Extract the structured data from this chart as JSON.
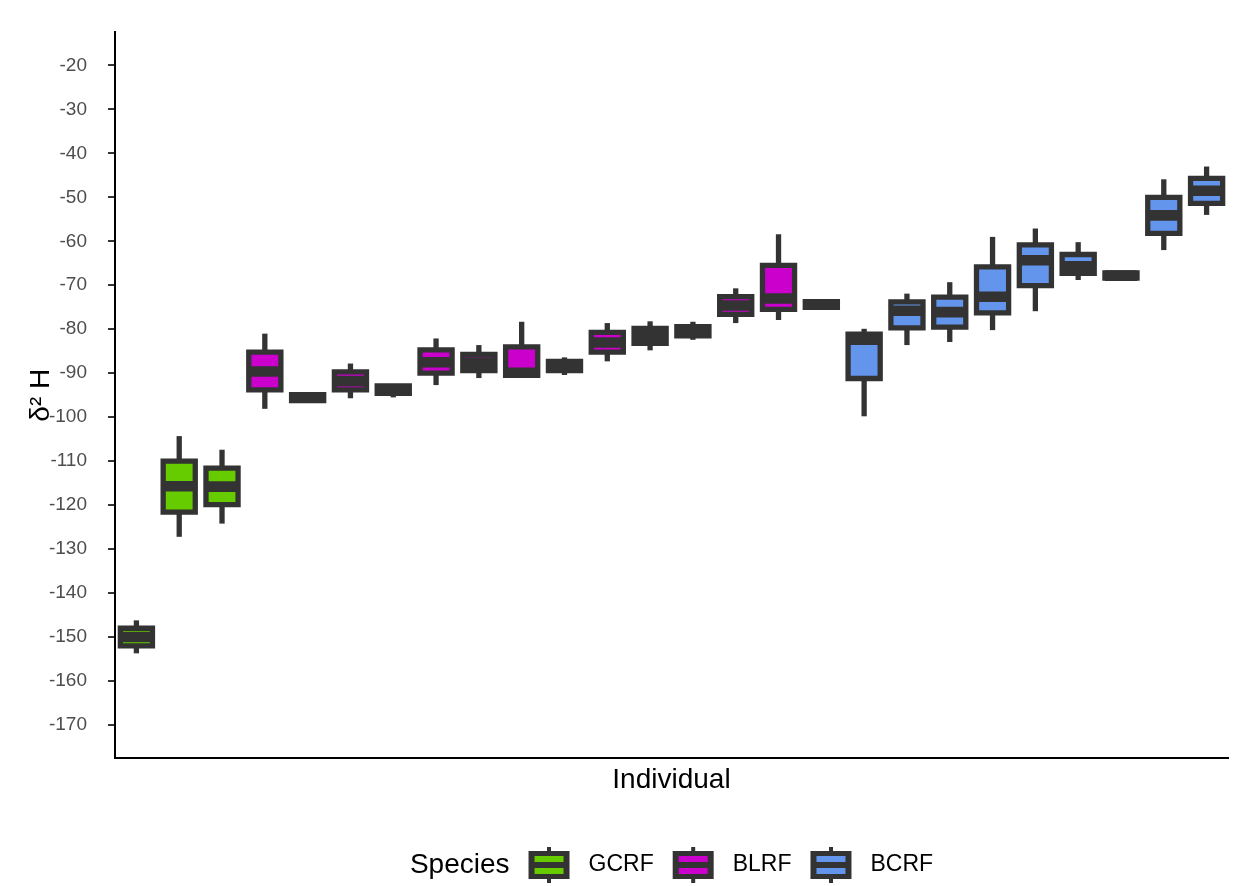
{
  "chart_data": {
    "type": "box",
    "xlabel": "Individual",
    "ylabel": "δ² H",
    "legend_title": "Species",
    "legend": "bottom",
    "tick_labels": "y",
    "categories": [
      null,
      null,
      null,
      null,
      null,
      null,
      null,
      null,
      null,
      null,
      null,
      null,
      null,
      null,
      null,
      null,
      null,
      null,
      null,
      null,
      null,
      null,
      null,
      null,
      null,
      null
    ],
    "ylim": [
      -177.5,
      -12.5
    ],
    "yticks": [
      -170,
      -160,
      -150,
      -140,
      -130,
      -120,
      -110,
      -100,
      -90,
      -80,
      -70,
      -60,
      -50,
      -40,
      -30,
      -20
    ],
    "series": [
      {
        "name": "GCRF",
        "color": "#66cc00",
        "boxes": [
          {
            "low": -153.7,
            "q1": -152.0,
            "median": -150.0,
            "q3": -148.0,
            "high": -146.2
          },
          {
            "low": -127.2,
            "q1": -121.6,
            "median": -115.7,
            "q3": -110.0,
            "high": -104.3
          },
          {
            "low": -124.2,
            "q1": -119.9,
            "median": -115.8,
            "q3": -111.6,
            "high": -107.4
          },
          null,
          null,
          null,
          null,
          null,
          null,
          null,
          null,
          null,
          null,
          null,
          null,
          null,
          null,
          null,
          null,
          null,
          null,
          null,
          null,
          null,
          null,
          null
        ]
      },
      {
        "name": "BLRF",
        "color": "#cc00cc",
        "boxes": [
          null,
          null,
          null,
          {
            "low": -98.1,
            "q1": -93.8,
            "median": -89.6,
            "q3": -85.2,
            "high": -81.0
          },
          {
            "low": -96.4,
            "q1": -96.2,
            "median": -95.5,
            "q3": -94.9,
            "high": -94.7
          },
          {
            "low": -95.7,
            "q1": -93.8,
            "median": -91.8,
            "q3": -89.7,
            "high": -87.8
          },
          {
            "low": -95.5,
            "q1": -94.6,
            "median": -93.8,
            "q3": -92.9,
            "high": -92.6
          },
          {
            "low": -92.7,
            "q1": -90.0,
            "median": -87.5,
            "q3": -84.7,
            "high": -82.1
          },
          {
            "low": -91.1,
            "q1": -89.4,
            "median": -87.6,
            "q3": -85.7,
            "high": -83.6
          },
          {
            "low": -90.7,
            "q1": -90.5,
            "median": -89.9,
            "q3": -84.0,
            "high": -78.3
          },
          {
            "low": -90.4,
            "q1": -89.4,
            "median": -88.3,
            "q3": -87.3,
            "high": -86.4
          },
          {
            "low": -87.3,
            "q1": -85.2,
            "median": -83.0,
            "q3": -80.7,
            "high": -78.6
          },
          {
            "low": -84.8,
            "q1": -83.2,
            "median": -81.5,
            "q3": -79.8,
            "high": -78.2
          },
          {
            "low": -82.4,
            "q1": -81.5,
            "median": -80.5,
            "q3": -79.4,
            "high": -78.3
          },
          {
            "low": -78.6,
            "q1": -76.6,
            "median": -74.6,
            "q3": -72.6,
            "high": -70.7
          },
          {
            "low": -77.9,
            "q1": -75.5,
            "median": -73.0,
            "q3": -65.5,
            "high": -58.4
          },
          {
            "low": -75.2,
            "q1": -75.0,
            "median": -74.4,
            "q3": -73.7,
            "high": -73.5
          },
          null,
          null,
          null,
          null,
          null,
          null,
          null,
          null,
          null
        ]
      },
      {
        "name": "BCRF",
        "color": "#6495ed",
        "boxes": [
          null,
          null,
          null,
          null,
          null,
          null,
          null,
          null,
          null,
          null,
          null,
          null,
          null,
          null,
          null,
          null,
          null,
          {
            "low": -99.8,
            "q1": -91.2,
            "median": -82.4,
            "q3": -81.1,
            "high": -79.9
          },
          {
            "low": -83.6,
            "q1": -79.7,
            "median": -75.8,
            "q3": -73.8,
            "high": -71.9
          },
          {
            "low": -82.9,
            "q1": -79.5,
            "median": -76.1,
            "q3": -72.7,
            "high": -69.3
          },
          {
            "low": -80.2,
            "q1": -76.3,
            "median": -72.6,
            "q3": -65.8,
            "high": -59.0
          },
          {
            "low": -75.9,
            "q1": -70.1,
            "median": -64.3,
            "q3": -60.8,
            "high": -57.1
          },
          {
            "low": -68.8,
            "q1": -67.3,
            "median": -65.7,
            "q3": -63.0,
            "high": -60.2
          },
          {
            "low": -68.6,
            "q1": -68.4,
            "median": -67.8,
            "q3": -67.2,
            "high": -67.0
          },
          {
            "low": -62.0,
            "q1": -58.2,
            "median": -54.1,
            "q3": -50.0,
            "high": -45.9
          },
          {
            "low": -54.0,
            "q1": -51.4,
            "median": -48.5,
            "q3": -45.7,
            "high": -43.0
          }
        ]
      }
    ]
  }
}
